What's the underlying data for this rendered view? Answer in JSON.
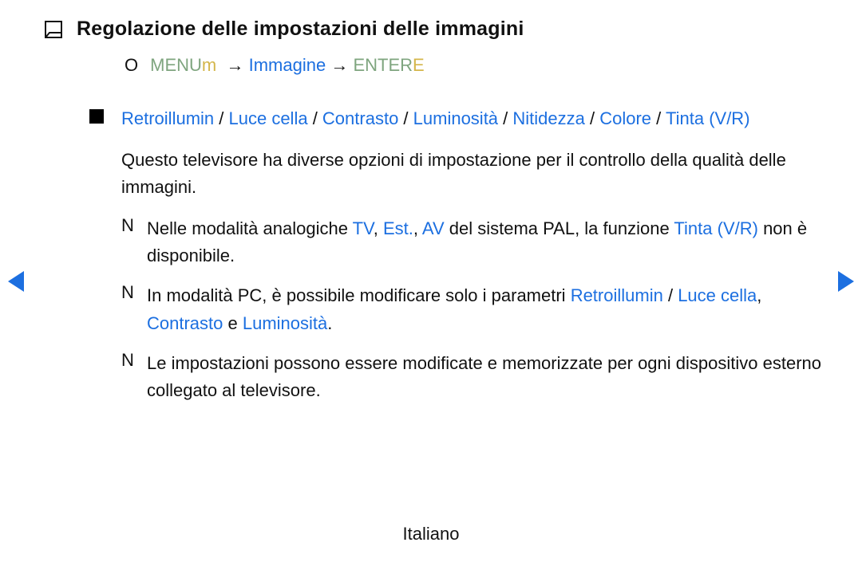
{
  "colors": {
    "link": "#1c6fe0",
    "menuGreen": "#7fa57f",
    "accentYellow": "#d4b64a",
    "text": "#111111",
    "background": "#ffffff"
  },
  "title": "Regolazione delle impostazioni delle immagini",
  "menuPath": {
    "oMarker": "O",
    "menuWord": "MENU",
    "menuM": "m",
    "arrow1": "→",
    "item": "Immagine",
    "arrow2": "→",
    "enterWord": "ENTER",
    "enterE": "E"
  },
  "section": {
    "head": {
      "parts": [
        {
          "t": "Retroillumin",
          "link": true
        },
        {
          "t": " / "
        },
        {
          "t": "Luce cella",
          "link": true
        },
        {
          "t": " / "
        },
        {
          "t": "Contrasto",
          "link": true
        },
        {
          "t": " / "
        },
        {
          "t": "Luminosità",
          "link": true
        },
        {
          "t": " / "
        },
        {
          "t": "Nitidezza",
          "link": true
        },
        {
          "t": " / "
        },
        {
          "t": "Colore",
          "link": true
        },
        {
          "t": " / "
        },
        {
          "t": "Tinta (V/R)",
          "link": true
        }
      ]
    },
    "body": "Questo televisore ha diverse opzioni di impostazione per il controllo della qualità delle immagini.",
    "notes": [
      {
        "marker": "N",
        "parts": [
          {
            "t": "Nelle modalità analogiche "
          },
          {
            "t": "TV",
            "link": true
          },
          {
            "t": ", "
          },
          {
            "t": "Est.",
            "link": true
          },
          {
            "t": ", "
          },
          {
            "t": "AV",
            "link": true
          },
          {
            "t": " del sistema PAL, la funzione "
          },
          {
            "t": "Tinta (V/R)",
            "link": true
          },
          {
            "t": " non è disponibile."
          }
        ]
      },
      {
        "marker": "N",
        "parts": [
          {
            "t": "In modalità PC, è possibile modificare solo i parametri "
          },
          {
            "t": "Retroillumin",
            "link": true
          },
          {
            "t": " / "
          },
          {
            "t": "Luce cella",
            "link": true
          },
          {
            "t": ", "
          },
          {
            "t": "Contrasto",
            "link": true
          },
          {
            "t": " e "
          },
          {
            "t": "Luminosità",
            "link": true
          },
          {
            "t": "."
          }
        ]
      },
      {
        "marker": "N",
        "parts": [
          {
            "t": "Le impostazioni possono essere modificate e memorizzate per ogni dispositivo esterno collegato al televisore."
          }
        ]
      }
    ]
  },
  "footer": "Italiano"
}
